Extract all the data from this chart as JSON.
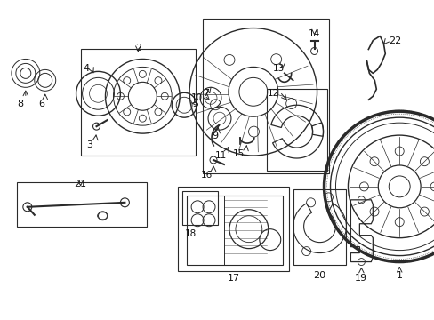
{
  "bg_color": "#ffffff",
  "line_color": "#2a2a2a",
  "label_color": "#111111",
  "fig_w": 4.89,
  "fig_h": 3.6,
  "dpi": 100
}
